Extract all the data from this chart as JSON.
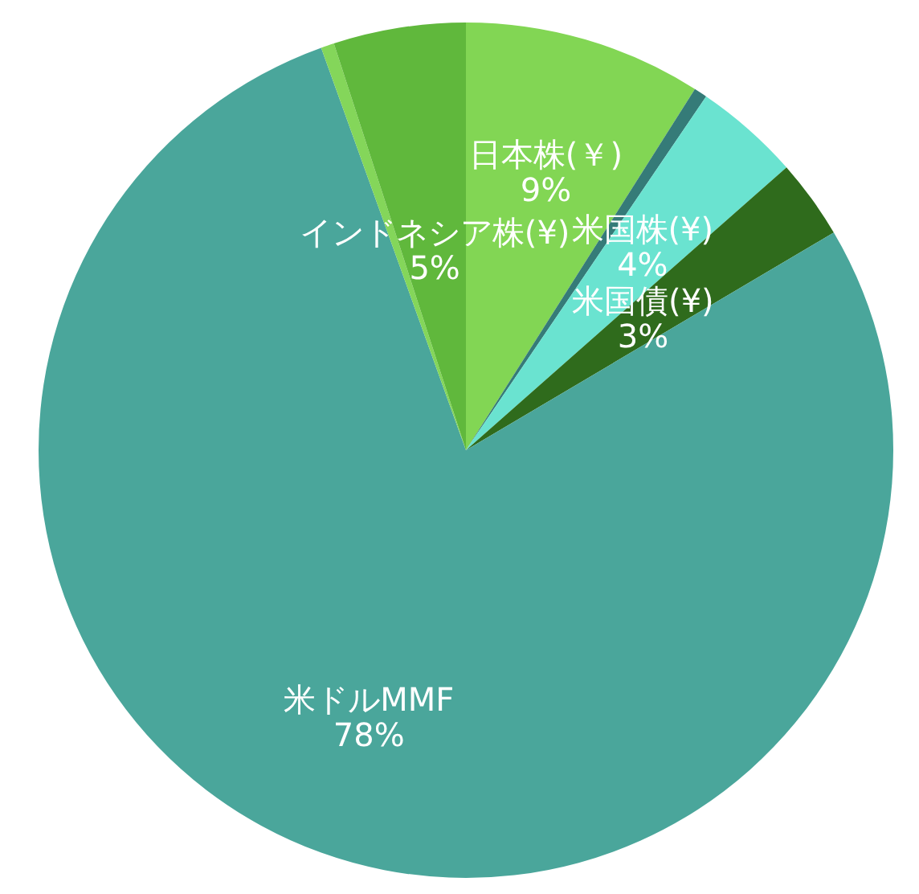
{
  "chart_data": {
    "type": "pie",
    "categories": [
      "日本株(￥)",
      null,
      "米国株(¥)",
      "米国債(¥)",
      "米ドルMMF",
      null,
      "インドネシア株(¥)"
    ],
    "values": [
      9,
      0.5,
      4,
      3,
      78,
      0.5,
      5
    ],
    "colors": [
      "#82d654",
      "#357b78",
      "#6ae3d0",
      "#2f6b1c",
      "#4aa69b",
      "#84d65a",
      "#60b83c"
    ],
    "value_labels": [
      "9%",
      null,
      "4%",
      "3%",
      "78%",
      null,
      "5%"
    ]
  }
}
